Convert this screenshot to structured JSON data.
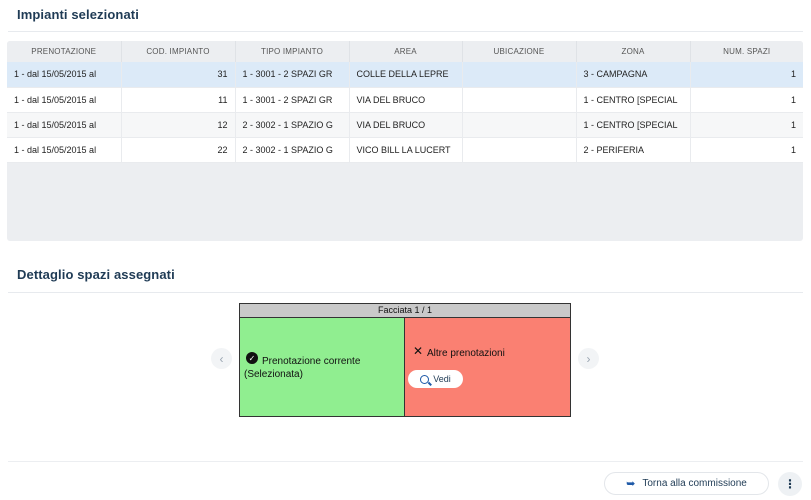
{
  "section1": {
    "title": "Impianti selezionati"
  },
  "table": {
    "columns": [
      "PRENOTAZIONE",
      "COD. IMPIANTO",
      "TIPO IMPIANTO",
      "AREA",
      "UBICAZIONE",
      "ZONA",
      "NUM. SPAZI"
    ],
    "rows": [
      [
        "1 - dal 15/05/2015 al",
        "31",
        "1 - 3001 - 2 SPAZI GR",
        "COLLE DELLA LEPRE",
        "",
        "3 - CAMPAGNA",
        "1"
      ],
      [
        "1 - dal 15/05/2015 al",
        "11",
        "1 - 3001 - 2 SPAZI GR",
        "VIA DEL BRUCO",
        "",
        "1 - CENTRO [SPECIAL",
        "1"
      ],
      [
        "1 - dal 15/05/2015 al",
        "12",
        "2 - 3002 - 1 SPAZIO G",
        "VIA DEL BRUCO",
        "",
        "1 - CENTRO [SPECIAL",
        "1"
      ],
      [
        "1 - dal 15/05/2015 al",
        "22",
        "2 - 3002 - 1 SPAZIO G",
        "VICO BILL LA LUCERT",
        "",
        "2 - PERIFERIA",
        "1"
      ]
    ]
  },
  "section2": {
    "title": "Dettaglio spazi assegnati"
  },
  "facade": {
    "header": "Facciata 1 / 1",
    "current_label": "Prenotazione corrente (Selezionata)",
    "other_label": "Altre prenotazioni",
    "vedi_label": "Vedi",
    "current_color": "#90ee90",
    "other_color": "#fa8072"
  },
  "nav": {
    "prev": "‹",
    "next": "›"
  },
  "footer": {
    "back_label": "Torna alla commissione",
    "more": "⋮"
  }
}
